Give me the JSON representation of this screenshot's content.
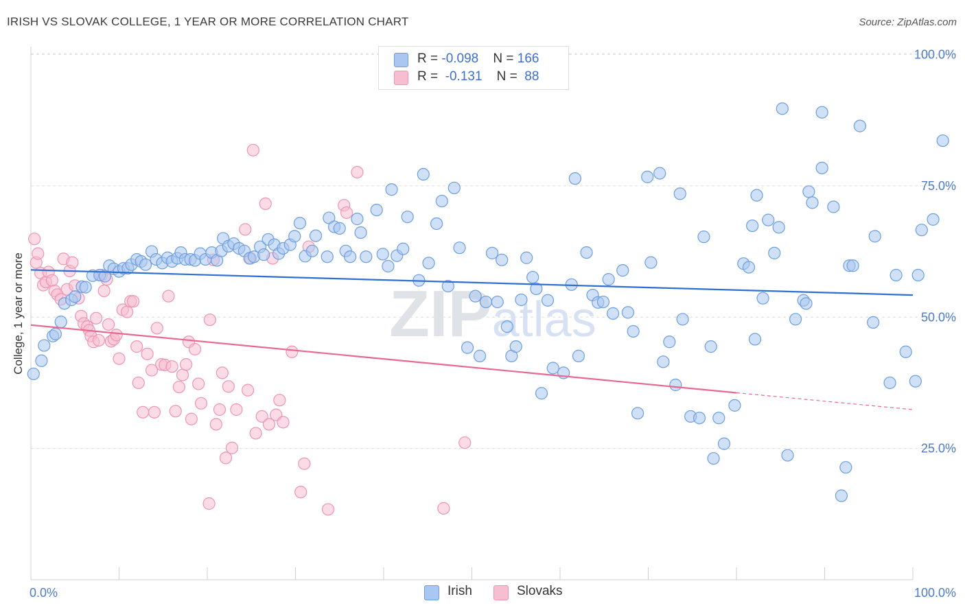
{
  "title": "IRISH VS SLOVAK COLLEGE, 1 YEAR OR MORE CORRELATION CHART",
  "source": "Source: ZipAtlas.com",
  "watermark": "ZIPatlas",
  "legend": {
    "rows": [
      {
        "prefix": "R = ",
        "r": "-0.098",
        "nlabel": "N = ",
        "n": "166"
      },
      {
        "prefix": "R = ",
        "r": " -0.131",
        "nlabel": "N = ",
        "n": " 88"
      }
    ]
  },
  "bottom_legend": [
    "Irish",
    "Slovaks"
  ],
  "colors": {
    "irish_fill": "#a9c7f0",
    "irish_stroke": "#6b9ee0",
    "irish_line": "#2e6fd1",
    "slovak_fill": "#f7bdd0",
    "slovak_stroke": "#ef93b3",
    "slovak_line": "#e8688f",
    "grid": "#dddddd",
    "axis_text": "#4a7ac9"
  },
  "chart_data": {
    "type": "scatter",
    "title": "IRISH VS SLOVAK COLLEGE, 1 YEAR OR MORE CORRELATION CHART",
    "xlabel": "",
    "ylabel": "College, 1 year or more",
    "xlim": [
      0,
      100
    ],
    "ylim": [
      0,
      105
    ],
    "x_tick_labels": [
      "0.0%",
      "100.0%"
    ],
    "y_ticks": [
      25,
      50,
      75,
      100
    ],
    "y_tick_labels": [
      "25.0%",
      "50.0%",
      "75.0%",
      "100.0%"
    ],
    "grid": true,
    "legend_placement": "top-center",
    "series": [
      {
        "name": "Irish",
        "trend": {
          "x": [
            0,
            100
          ],
          "y": [
            59.0,
            54.2
          ]
        },
        "points": [
          [
            0.3,
            39.2
          ],
          [
            1.2,
            41.7
          ],
          [
            1.5,
            44.6
          ],
          [
            2.5,
            46.4
          ],
          [
            2.8,
            46.8
          ],
          [
            3.4,
            49.1
          ],
          [
            3.8,
            52.6
          ],
          [
            4.6,
            53.3
          ],
          [
            5.0,
            53.9
          ],
          [
            5.8,
            55.8
          ],
          [
            6.2,
            55.7
          ],
          [
            7.0,
            57.9
          ],
          [
            7.8,
            58.0
          ],
          [
            8.4,
            57.8
          ],
          [
            8.9,
            59.8
          ],
          [
            9.4,
            59.2
          ],
          [
            10.0,
            58.7
          ],
          [
            10.5,
            59.3
          ],
          [
            11.0,
            59.3
          ],
          [
            11.4,
            60.0
          ],
          [
            12.0,
            61.0
          ],
          [
            12.5,
            60.6
          ],
          [
            13.0,
            60.0
          ],
          [
            13.7,
            62.5
          ],
          [
            14.2,
            61.0
          ],
          [
            14.9,
            60.3
          ],
          [
            15.5,
            61.3
          ],
          [
            16.0,
            60.6
          ],
          [
            16.6,
            61.2
          ],
          [
            17.0,
            62.3
          ],
          [
            17.5,
            61.0
          ],
          [
            18.1,
            61.0
          ],
          [
            18.6,
            60.8
          ],
          [
            19.2,
            62.1
          ],
          [
            19.8,
            61.0
          ],
          [
            20.5,
            62.3
          ],
          [
            21.1,
            60.8
          ],
          [
            21.6,
            62.6
          ],
          [
            21.8,
            65.0
          ],
          [
            22.4,
            63.5
          ],
          [
            23.0,
            64.0
          ],
          [
            23.6,
            63.1
          ],
          [
            24.2,
            62.6
          ],
          [
            24.8,
            61.2
          ],
          [
            25.3,
            61.5
          ],
          [
            26.0,
            63.4
          ],
          [
            26.4,
            61.9
          ],
          [
            26.9,
            64.8
          ],
          [
            27.6,
            63.8
          ],
          [
            28.1,
            62.1
          ],
          [
            28.6,
            63.1
          ],
          [
            29.4,
            63.8
          ],
          [
            29.9,
            65.4
          ],
          [
            30.5,
            67.9
          ],
          [
            31.1,
            61.6
          ],
          [
            31.9,
            62.6
          ],
          [
            32.3,
            65.5
          ],
          [
            33.6,
            61.5
          ],
          [
            33.8,
            68.9
          ],
          [
            34.4,
            67.2
          ],
          [
            35.0,
            66.9
          ],
          [
            35.7,
            62.6
          ],
          [
            36.2,
            61.5
          ],
          [
            37.0,
            68.7
          ],
          [
            37.4,
            66.1
          ],
          [
            38.0,
            61.5
          ],
          [
            39.2,
            70.4
          ],
          [
            39.9,
            62.0
          ],
          [
            40.5,
            59.7
          ],
          [
            40.9,
            74.3
          ],
          [
            41.5,
            61.7
          ],
          [
            42.2,
            63.0
          ],
          [
            42.7,
            69.1
          ],
          [
            44.0,
            57.0
          ],
          [
            44.5,
            77.2
          ],
          [
            45.1,
            60.3
          ],
          [
            46.0,
            67.8
          ],
          [
            46.6,
            72.1
          ],
          [
            47.3,
            55.9
          ],
          [
            48.0,
            74.6
          ],
          [
            48.6,
            63.2
          ],
          [
            49.5,
            44.2
          ],
          [
            50.4,
            54.0
          ],
          [
            50.9,
            42.6
          ],
          [
            51.6,
            52.9
          ],
          [
            52.3,
            62.2
          ],
          [
            52.9,
            52.9
          ],
          [
            53.4,
            60.9
          ],
          [
            54.0,
            48.2
          ],
          [
            54.5,
            42.6
          ],
          [
            55.0,
            44.4
          ],
          [
            55.6,
            53.3
          ],
          [
            56.2,
            61.3
          ],
          [
            56.9,
            57.6
          ],
          [
            57.3,
            55.4
          ],
          [
            57.9,
            35.5
          ],
          [
            58.6,
            53.2
          ],
          [
            59.2,
            40.3
          ],
          [
            60.4,
            39.4
          ],
          [
            61.3,
            56.2
          ],
          [
            61.7,
            76.4
          ],
          [
            62.1,
            42.6
          ],
          [
            63.0,
            62.3
          ],
          [
            63.7,
            54.2
          ],
          [
            64.3,
            52.8
          ],
          [
            64.9,
            52.9
          ],
          [
            65.5,
            57.2
          ],
          [
            66.0,
            50.7
          ],
          [
            67.1,
            58.9
          ],
          [
            67.7,
            50.9
          ],
          [
            68.3,
            47.3
          ],
          [
            68.8,
            31.7
          ],
          [
            69.9,
            76.7
          ],
          [
            70.3,
            60.4
          ],
          [
            71.3,
            77.4
          ],
          [
            71.7,
            41.5
          ],
          [
            72.4,
            45.3
          ],
          [
            73.1,
            37.1
          ],
          [
            73.6,
            73.5
          ],
          [
            73.9,
            49.6
          ],
          [
            74.8,
            31.1
          ],
          [
            75.8,
            30.8
          ],
          [
            76.3,
            65.3
          ],
          [
            77.1,
            44.4
          ],
          [
            77.4,
            23.1
          ],
          [
            78.0,
            30.8
          ],
          [
            78.6,
            25.9
          ],
          [
            79.8,
            33.2
          ],
          [
            80.8,
            60.2
          ],
          [
            81.4,
            59.5
          ],
          [
            81.8,
            67.4
          ],
          [
            82.1,
            45.8
          ],
          [
            82.3,
            73.2
          ],
          [
            83.0,
            53.6
          ],
          [
            83.6,
            68.5
          ],
          [
            84.3,
            62.2
          ],
          [
            84.8,
            67.1
          ],
          [
            85.2,
            89.7
          ],
          [
            85.8,
            23.7
          ],
          [
            86.7,
            49.6
          ],
          [
            87.6,
            53.2
          ],
          [
            87.9,
            52.6
          ],
          [
            88.2,
            73.9
          ],
          [
            88.6,
            71.8
          ],
          [
            89.7,
            89.0
          ],
          [
            89.7,
            78.4
          ],
          [
            91.0,
            71.0
          ],
          [
            91.9,
            16.0
          ],
          [
            92.4,
            21.4
          ],
          [
            92.8,
            59.8
          ],
          [
            93.2,
            59.8
          ],
          [
            94.0,
            86.4
          ],
          [
            95.5,
            49.0
          ],
          [
            95.7,
            65.4
          ],
          [
            97.4,
            37.5
          ],
          [
            98.1,
            58.0
          ],
          [
            99.2,
            43.4
          ],
          [
            100.3,
            37.8
          ],
          [
            100.6,
            58.0
          ],
          [
            101.0,
            66.6
          ],
          [
            102.3,
            68.6
          ],
          [
            103.4,
            83.6
          ]
        ]
      },
      {
        "name": "Slovaks",
        "trend": {
          "x": [
            0,
            80
          ],
          "y": [
            48.5,
            35.6
          ]
        },
        "trend_dashed": {
          "x": [
            80,
            100
          ],
          "y": [
            35.6,
            32.4
          ]
        },
        "points": [
          [
            0.4,
            64.9
          ],
          [
            0.6,
            60.4
          ],
          [
            0.8,
            62.1
          ],
          [
            1.1,
            58.4
          ],
          [
            1.4,
            56.1
          ],
          [
            1.7,
            56.7
          ],
          [
            2.0,
            58.6
          ],
          [
            2.4,
            57.0
          ],
          [
            2.7,
            55.0
          ],
          [
            3.0,
            54.3
          ],
          [
            3.4,
            53.4
          ],
          [
            3.7,
            61.1
          ],
          [
            4.1,
            55.3
          ],
          [
            4.4,
            58.8
          ],
          [
            4.7,
            60.4
          ],
          [
            5.0,
            56.0
          ],
          [
            5.4,
            53.6
          ],
          [
            5.7,
            50.2
          ],
          [
            6.0,
            48.8
          ],
          [
            6.4,
            48.2
          ],
          [
            6.6,
            47.5
          ],
          [
            6.8,
            46.4
          ],
          [
            7.1,
            45.3
          ],
          [
            7.4,
            49.8
          ],
          [
            7.7,
            45.6
          ],
          [
            8.0,
            58.0
          ],
          [
            8.3,
            55.0
          ],
          [
            8.6,
            57.2
          ],
          [
            8.8,
            48.6
          ],
          [
            9.1,
            45.4
          ],
          [
            9.4,
            45.8
          ],
          [
            9.7,
            46.6
          ],
          [
            10.0,
            42.1
          ],
          [
            10.4,
            51.4
          ],
          [
            10.9,
            51.0
          ],
          [
            11.3,
            53.0
          ],
          [
            11.6,
            53.0
          ],
          [
            12.0,
            44.4
          ],
          [
            12.2,
            37.5
          ],
          [
            12.7,
            31.9
          ],
          [
            13.2,
            43.0
          ],
          [
            13.7,
            39.9
          ],
          [
            14.0,
            31.9
          ],
          [
            14.3,
            47.9
          ],
          [
            14.8,
            41.0
          ],
          [
            15.2,
            40.9
          ],
          [
            15.6,
            54.0
          ],
          [
            16.0,
            40.6
          ],
          [
            16.4,
            32.1
          ],
          [
            16.8,
            36.7
          ],
          [
            17.2,
            39.0
          ],
          [
            17.6,
            41.0
          ],
          [
            17.9,
            45.3
          ],
          [
            18.2,
            30.6
          ],
          [
            18.6,
            43.9
          ],
          [
            19.0,
            37.3
          ],
          [
            19.3,
            33.6
          ],
          [
            20.2,
            14.5
          ],
          [
            20.3,
            49.5
          ],
          [
            20.7,
            60.9
          ],
          [
            21.0,
            29.6
          ],
          [
            21.4,
            32.4
          ],
          [
            21.7,
            39.4
          ],
          [
            22.1,
            23.2
          ],
          [
            22.4,
            36.8
          ],
          [
            22.8,
            25.1
          ],
          [
            23.3,
            32.4
          ],
          [
            24.3,
            66.7
          ],
          [
            24.6,
            36.1
          ],
          [
            24.9,
            61.2
          ],
          [
            25.2,
            81.8
          ],
          [
            25.5,
            27.9
          ],
          [
            26.2,
            31.1
          ],
          [
            26.6,
            71.6
          ],
          [
            27.0,
            29.6
          ],
          [
            27.4,
            61.2
          ],
          [
            27.8,
            31.4
          ],
          [
            28.2,
            34.2
          ],
          [
            28.6,
            30.0
          ],
          [
            29.6,
            43.4
          ],
          [
            30.6,
            16.7
          ],
          [
            31.0,
            22.1
          ],
          [
            31.5,
            63.4
          ],
          [
            33.7,
            13.4
          ],
          [
            35.5,
            71.3
          ],
          [
            35.8,
            69.9
          ],
          [
            37.0,
            77.6
          ],
          [
            46.8,
            13.6
          ],
          [
            49.2,
            26.1
          ]
        ]
      }
    ]
  }
}
